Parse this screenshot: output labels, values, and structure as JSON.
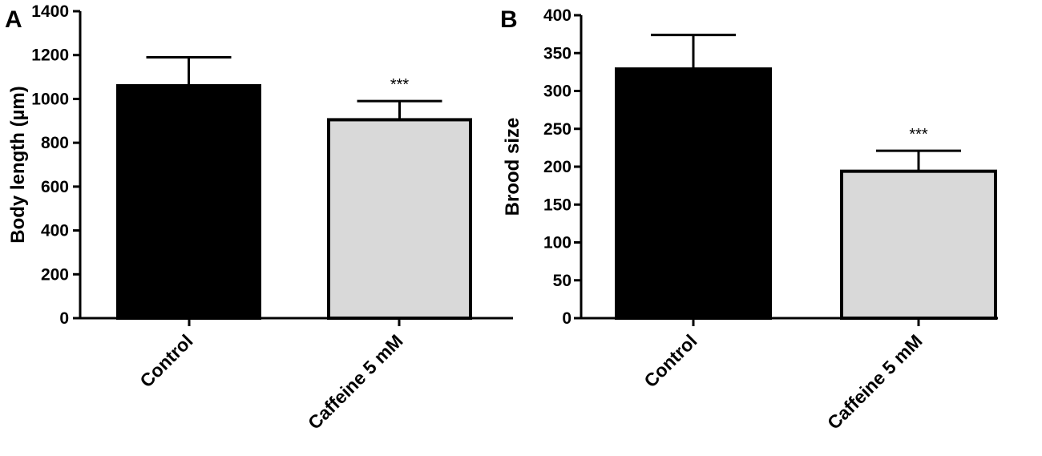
{
  "chart_data": [
    {
      "type": "bar",
      "panel": "A",
      "categories": [
        "Control",
        "Caffeine 5 mM"
      ],
      "values": [
        1060,
        905
      ],
      "errors": [
        130,
        85
      ],
      "annotations": [
        "",
        "***"
      ],
      "colors": [
        "#000000",
        "#d9d9d9"
      ],
      "title": "",
      "xlabel": "",
      "ylabel": "Body length (µm)",
      "ylim": [
        0,
        1400
      ],
      "yticks": [
        0,
        200,
        400,
        600,
        800,
        1000,
        1200,
        1400
      ],
      "grid": false
    },
    {
      "type": "bar",
      "panel": "B",
      "categories": [
        "Control",
        "Caffeine 5 mM"
      ],
      "values": [
        329,
        194
      ],
      "errors": [
        45,
        27
      ],
      "annotations": [
        "",
        "***"
      ],
      "colors": [
        "#000000",
        "#d9d9d9"
      ],
      "title": "",
      "xlabel": "",
      "ylabel": "Brood size",
      "ylim": [
        0,
        400
      ],
      "yticks": [
        0,
        50,
        100,
        150,
        200,
        250,
        300,
        350,
        400
      ],
      "grid": false
    }
  ]
}
